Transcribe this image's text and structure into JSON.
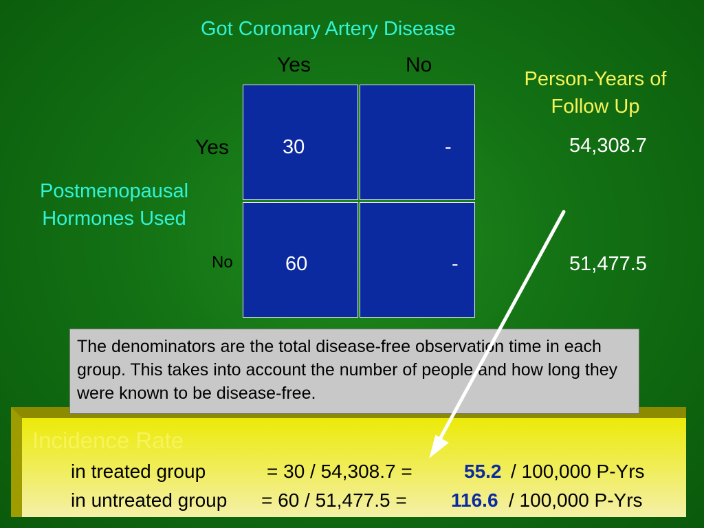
{
  "table": {
    "title": "Got Coronary Artery Disease",
    "column_headers": [
      "Yes",
      "No"
    ],
    "row_axis_label": "Postmenopausal Hormones Used",
    "row_headers": [
      "Yes",
      "No"
    ],
    "cells": [
      [
        "30",
        "-"
      ],
      [
        "60",
        "-"
      ]
    ],
    "person_years_header": "Person-Years of Follow Up",
    "person_years": [
      "54,308.7",
      "51,477.5"
    ]
  },
  "note": "The denominators are the total disease-free observation time in each group. This takes into account the number of people and how long they were known to be disease-free.",
  "incidence": {
    "title": "Incidence Rate",
    "treated": {
      "label": "in treated group",
      "equation": "= 30 / 54,308.7 =",
      "value": "55.2",
      "unit": "/ 100,000 P-Yrs"
    },
    "untreated": {
      "label": "in untreated group",
      "equation": "= 60 / 51,477.5 =",
      "value": "116.6",
      "unit": "/ 100,000 P-Yrs"
    }
  },
  "colors": {
    "background": "#137114",
    "cell_fill": "#0c2aa0",
    "heading_cyan": "#33f3d6",
    "heading_yellow": "#f7f35a",
    "box_gold": "#cfcc00"
  }
}
